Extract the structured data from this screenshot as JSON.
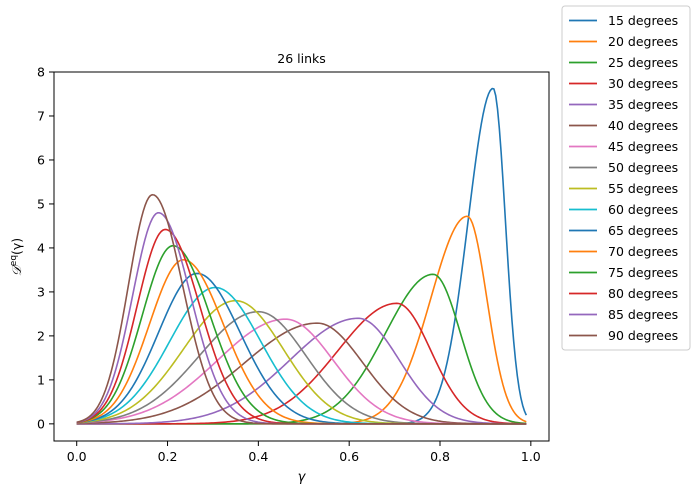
{
  "chart_data": {
    "type": "line",
    "title": "26 links",
    "xlabel": "γ",
    "ylabel": "𝒟^eq(γ)",
    "ylabel_main": "𝒟",
    "ylabel_sup": "eq",
    "ylabel_arg": "(γ)",
    "xlim": [
      -0.05,
      1.04
    ],
    "ylim": [
      -0.39,
      8.0
    ],
    "xticks": [
      0.0,
      0.2,
      0.4,
      0.6,
      0.8,
      1.0
    ],
    "xtick_labels": [
      "0.0",
      "0.2",
      "0.4",
      "0.6",
      "0.8",
      "1.0"
    ],
    "yticks": [
      0,
      1,
      2,
      3,
      4,
      5,
      6,
      7,
      8
    ],
    "ytick_labels": [
      "0",
      "1",
      "2",
      "3",
      "4",
      "5",
      "6",
      "7",
      "8"
    ],
    "grid": false,
    "legend": "outside-right-top",
    "series": [
      {
        "name": "15 degrees",
        "color": "#1f77b4",
        "peak_x": 0.917,
        "peak_y": 7.63,
        "sigma_left": 0.055,
        "sigma_right": 0.027
      },
      {
        "name": "20 degrees",
        "color": "#ff7f0e",
        "peak_x": 0.86,
        "peak_y": 4.72,
        "sigma_left": 0.08,
        "sigma_right": 0.043
      },
      {
        "name": "25 degrees",
        "color": "#2ca02c",
        "peak_x": 0.785,
        "peak_y": 3.4,
        "sigma_left": 0.105,
        "sigma_right": 0.06
      },
      {
        "name": "30 degrees",
        "color": "#d62728",
        "peak_x": 0.705,
        "peak_y": 2.74,
        "sigma_left": 0.13,
        "sigma_right": 0.075
      },
      {
        "name": "35 degrees",
        "color": "#9467bd",
        "peak_x": 0.62,
        "peak_y": 2.4,
        "sigma_left": 0.15,
        "sigma_right": 0.09
      },
      {
        "name": "40 degrees",
        "color": "#8c564b",
        "peak_x": 0.53,
        "peak_y": 2.29,
        "sigma_left": 0.16,
        "sigma_right": 0.1
      },
      {
        "name": "45 degrees",
        "color": "#e377c2",
        "peak_x": 0.46,
        "peak_y": 2.38,
        "sigma_left": 0.15,
        "sigma_right": 0.105
      },
      {
        "name": "50 degrees",
        "color": "#7f7f7f",
        "peak_x": 0.4,
        "peak_y": 2.55,
        "sigma_left": 0.13,
        "sigma_right": 0.105
      },
      {
        "name": "55 degrees",
        "color": "#bcbd22",
        "peak_x": 0.35,
        "peak_y": 2.8,
        "sigma_left": 0.115,
        "sigma_right": 0.105
      },
      {
        "name": "60 degrees",
        "color": "#17becf",
        "peak_x": 0.305,
        "peak_y": 3.1,
        "sigma_left": 0.1,
        "sigma_right": 0.1
      },
      {
        "name": "65 degrees",
        "color": "#1f77b4",
        "peak_x": 0.265,
        "peak_y": 3.42,
        "sigma_left": 0.085,
        "sigma_right": 0.095
      },
      {
        "name": "70 degrees",
        "color": "#ff7f0e",
        "peak_x": 0.235,
        "peak_y": 3.73,
        "sigma_left": 0.075,
        "sigma_right": 0.088
      },
      {
        "name": "75 degrees",
        "color": "#2ca02c",
        "peak_x": 0.212,
        "peak_y": 4.05,
        "sigma_left": 0.068,
        "sigma_right": 0.082
      },
      {
        "name": "80 degrees",
        "color": "#d62728",
        "peak_x": 0.195,
        "peak_y": 4.42,
        "sigma_left": 0.062,
        "sigma_right": 0.076
      },
      {
        "name": "85 degrees",
        "color": "#9467bd",
        "peak_x": 0.18,
        "peak_y": 4.8,
        "sigma_left": 0.057,
        "sigma_right": 0.071
      },
      {
        "name": "90 degrees",
        "color": "#8c564b",
        "peak_x": 0.167,
        "peak_y": 5.21,
        "sigma_left": 0.053,
        "sigma_right": 0.066
      }
    ]
  }
}
